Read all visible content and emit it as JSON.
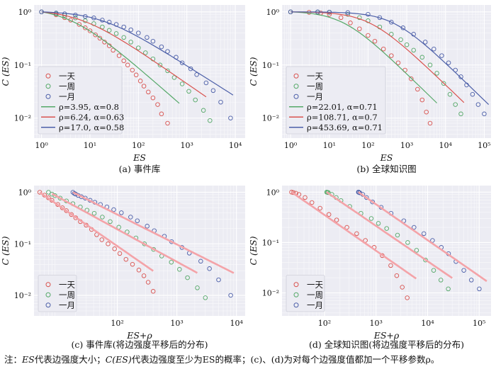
{
  "note": {
    "prefix": "注：",
    "es1": "ES",
    "t1": "代表边强度大小；",
    "ces": "C(ES)",
    "t2": "代表边强度至少为ES的概率；(c)、(d)为对每个边强度值都加一个平移参数ρ。"
  },
  "colors": {
    "day": "#d9534f",
    "week": "#55a868",
    "month": "#4c5fa8",
    "pink": "#f4a3a8",
    "plot_bg": "#ececf3",
    "grid": "#ffffff"
  },
  "chart_data": [
    {
      "type": "scatter",
      "caption": "(a) 事件库",
      "xlabel": "ES",
      "ylabel": "C (ES)",
      "x_scale": "log",
      "y_scale": "log",
      "xlim": [
        0.7,
        16000
      ],
      "ylim": [
        0.0042,
        1.35
      ],
      "x_ticks": [
        1,
        10,
        100,
        1000,
        10000
      ],
      "x_tick_labels": [
        "10⁰",
        "10¹",
        "10²",
        "10³",
        "10⁴"
      ],
      "y_ticks": [
        1,
        0.1,
        0.01
      ],
      "y_tick_labels": [
        "10⁰",
        "10⁻¹",
        "10⁻²"
      ],
      "grid": true,
      "legend_position": "lower-left",
      "series": [
        {
          "name": "一天",
          "kind": "points",
          "color_key": "day",
          "x": [
            1,
            2,
            3,
            4,
            6,
            8,
            10,
            13,
            16,
            20,
            25,
            30,
            40,
            50,
            60,
            75,
            90,
            110,
            130,
            160,
            200,
            250,
            300,
            400
          ],
          "y": [
            1,
            0.88,
            0.78,
            0.7,
            0.58,
            0.5,
            0.44,
            0.37,
            0.32,
            0.27,
            0.23,
            0.19,
            0.15,
            0.12,
            0.1,
            0.08,
            0.065,
            0.05,
            0.04,
            0.031,
            0.024,
            0.018,
            0.012,
            0.008
          ]
        },
        {
          "name": "一周",
          "kind": "points",
          "color_key": "week",
          "x": [
            1,
            2,
            3,
            5,
            8,
            12,
            18,
            25,
            35,
            50,
            70,
            100,
            140,
            200,
            280,
            400,
            550,
            800,
            1100,
            1500,
            2200,
            3000
          ],
          "y": [
            1,
            0.92,
            0.86,
            0.77,
            0.68,
            0.6,
            0.52,
            0.45,
            0.39,
            0.33,
            0.27,
            0.21,
            0.17,
            0.13,
            0.1,
            0.078,
            0.058,
            0.044,
            0.032,
            0.022,
            0.014,
            0.009
          ]
        },
        {
          "name": "一月",
          "kind": "points",
          "color_key": "month",
          "x": [
            1,
            2,
            3,
            5,
            8,
            12,
            18,
            25,
            35,
            50,
            70,
            100,
            150,
            200,
            300,
            400,
            600,
            800,
            1200,
            1600,
            2500,
            3500,
            5000,
            8000
          ],
          "y": [
            1,
            0.95,
            0.92,
            0.87,
            0.82,
            0.77,
            0.7,
            0.64,
            0.58,
            0.52,
            0.46,
            0.4,
            0.33,
            0.28,
            0.22,
            0.18,
            0.14,
            0.11,
            0.085,
            0.066,
            0.046,
            0.033,
            0.02,
            0.01
          ]
        },
        {
          "name": "ρ=3.95, α=0.8",
          "kind": "fit",
          "color_key": "week",
          "rho": 3.95,
          "alpha": 0.8,
          "x_range": [
            1,
            700
          ]
        },
        {
          "name": "ρ=6.24, α=0.63",
          "kind": "fit",
          "color_key": "day",
          "rho": 6.24,
          "alpha": 0.63,
          "x_range": [
            1,
            2500
          ]
        },
        {
          "name": "ρ=17.0, α=0.58",
          "kind": "fit",
          "color_key": "month",
          "rho": 17.0,
          "alpha": 0.58,
          "x_range": [
            1,
            9000
          ]
        }
      ]
    },
    {
      "type": "scatter",
      "caption": "(b) 全球知识图",
      "xlabel": "ES",
      "ylabel": "C (ES)",
      "x_scale": "log",
      "y_scale": "log",
      "xlim": [
        0.6,
        150000
      ],
      "ylim": [
        0.0042,
        1.35
      ],
      "x_ticks": [
        1,
        10,
        100,
        1000,
        10000,
        100000
      ],
      "x_tick_labels": [
        "10⁰",
        "10¹",
        "10²",
        "10³",
        "10⁴",
        "10⁵"
      ],
      "y_ticks": [
        1,
        0.1,
        0.01
      ],
      "y_tick_labels": [
        "10⁰",
        "10⁻¹",
        "10⁻²"
      ],
      "grid": true,
      "legend_position": "lower-left",
      "series": [
        {
          "name": "一天",
          "kind": "points",
          "color_key": "day",
          "x": [
            1,
            3,
            6,
            10,
            20,
            35,
            60,
            100,
            150,
            250,
            400,
            600,
            900,
            1300,
            1900,
            2500,
            3200,
            4000
          ],
          "y": [
            1,
            0.98,
            0.95,
            0.9,
            0.78,
            0.62,
            0.48,
            0.36,
            0.28,
            0.2,
            0.15,
            0.11,
            0.08,
            0.055,
            0.035,
            0.022,
            0.013,
            0.008
          ]
        },
        {
          "name": "一周",
          "kind": "points",
          "color_key": "week",
          "x": [
            1,
            5,
            10,
            30,
            60,
            100,
            200,
            400,
            700,
            1000,
            1500,
            2500,
            4000,
            6000,
            9000,
            13000,
            18000,
            25000
          ],
          "y": [
            1,
            0.99,
            0.98,
            0.9,
            0.78,
            0.68,
            0.52,
            0.38,
            0.3,
            0.24,
            0.19,
            0.14,
            0.1,
            0.07,
            0.045,
            0.028,
            0.018,
            0.012
          ]
        },
        {
          "name": "一月",
          "kind": "points",
          "color_key": "month",
          "x": [
            1,
            5,
            10,
            30,
            100,
            200,
            400,
            800,
            1500,
            3000,
            5000,
            8000,
            12000,
            18000,
            25000,
            35000,
            50000,
            70000,
            100000
          ],
          "y": [
            1,
            1,
            0.99,
            0.97,
            0.9,
            0.78,
            0.64,
            0.5,
            0.38,
            0.27,
            0.2,
            0.15,
            0.11,
            0.08,
            0.06,
            0.042,
            0.028,
            0.018,
            0.012
          ]
        },
        {
          "name": "ρ=22.01, α=0.71",
          "kind": "fit",
          "color_key": "week",
          "rho": 22.01,
          "alpha": 0.71,
          "x_range": [
            1,
            6000
          ]
        },
        {
          "name": "ρ=108.71, α=0.7",
          "kind": "fit",
          "color_key": "day",
          "rho": 108.71,
          "alpha": 0.7,
          "x_range": [
            1,
            30000
          ]
        },
        {
          "name": "ρ=453.69, α=0.71",
          "kind": "fit",
          "color_key": "month",
          "rho": 453.69,
          "alpha": 0.71,
          "x_range": [
            1,
            130000
          ]
        }
      ]
    },
    {
      "type": "scatter",
      "caption": "(c) 事件库(将边强度平移后的分布)",
      "xlabel": "ES+ρ",
      "ylabel": "C (ES)",
      "x_scale": "log",
      "y_scale": "log",
      "xlim": [
        4,
        14000
      ],
      "ylim": [
        0.004,
        1.35
      ],
      "x_ticks": [
        100,
        1000,
        10000
      ],
      "x_tick_labels": [
        "10²",
        "10³",
        "10⁴"
      ],
      "y_ticks": [
        1,
        0.1,
        0.01
      ],
      "y_tick_labels": [
        "10⁰",
        "10⁻¹",
        "10⁻²"
      ],
      "grid": true,
      "legend_position": "lower-left",
      "series": [
        {
          "name": "一天",
          "kind": "points",
          "color_key": "day",
          "x": [
            5,
            6,
            7,
            8,
            10,
            12,
            14,
            17,
            20,
            24,
            30,
            37,
            45,
            55,
            70,
            90,
            110,
            140,
            180,
            230,
            280,
            330,
            400
          ],
          "y": [
            1,
            0.88,
            0.78,
            0.7,
            0.58,
            0.5,
            0.44,
            0.37,
            0.32,
            0.27,
            0.23,
            0.19,
            0.15,
            0.12,
            0.1,
            0.08,
            0.065,
            0.05,
            0.04,
            0.031,
            0.024,
            0.018,
            0.012
          ]
        },
        {
          "name": "一周",
          "kind": "points",
          "color_key": "week",
          "x": [
            7,
            8,
            9,
            11,
            14,
            18,
            24,
            31,
            41,
            56,
            76,
            106,
            146,
            206,
            286,
            406,
            556,
            806,
            1106,
            1506,
            2206,
            3006
          ],
          "y": [
            1,
            0.92,
            0.86,
            0.77,
            0.68,
            0.6,
            0.52,
            0.45,
            0.39,
            0.33,
            0.27,
            0.21,
            0.17,
            0.13,
            0.1,
            0.078,
            0.058,
            0.044,
            0.032,
            0.022,
            0.014,
            0.009
          ]
        },
        {
          "name": "一月",
          "kind": "points",
          "color_key": "month",
          "x": [
            18,
            19,
            20,
            22,
            25,
            29,
            35,
            42,
            52,
            67,
            87,
            117,
            167,
            217,
            317,
            417,
            617,
            817,
            1217,
            1617,
            2517,
            3517,
            5017,
            8017
          ],
          "y": [
            1,
            0.95,
            0.92,
            0.87,
            0.82,
            0.77,
            0.7,
            0.64,
            0.58,
            0.52,
            0.46,
            0.4,
            0.33,
            0.28,
            0.22,
            0.18,
            0.14,
            0.11,
            0.085,
            0.066,
            0.046,
            0.033,
            0.02,
            0.01
          ]
        },
        {
          "name": "",
          "kind": "fit",
          "color_key": "pink",
          "rho": 0,
          "alpha": 0.8,
          "x0": 4.95,
          "x_range": [
            5,
            400
          ]
        },
        {
          "name": "",
          "kind": "fit",
          "color_key": "pink",
          "rho": 0,
          "alpha": 0.63,
          "x0": 7.24,
          "x_range": [
            8,
            2200
          ]
        },
        {
          "name": "",
          "kind": "fit",
          "color_key": "pink",
          "rho": 0,
          "alpha": 0.58,
          "x0": 18,
          "x_range": [
            18,
            9000
          ]
        }
      ]
    },
    {
      "type": "scatter",
      "caption": "(d) 全球知识图(将边强度平移后的分布)",
      "xlabel": "ES+ρ",
      "ylabel": "C (ES)",
      "x_scale": "log",
      "y_scale": "log",
      "xlim": [
        15,
        170000
      ],
      "ylim": [
        0.0035,
        1.35
      ],
      "x_ticks": [
        100,
        1000,
        10000,
        100000
      ],
      "x_tick_labels": [
        "10²",
        "10³",
        "10⁴",
        "10⁵"
      ],
      "y_ticks": [
        1,
        0.1,
        0.01
      ],
      "y_tick_labels": [
        "10⁰",
        "10⁻¹",
        "10⁻²"
      ],
      "grid": true,
      "legend_position": "lower-left",
      "series": [
        {
          "name": "一天",
          "kind": "points",
          "color_key": "day",
          "x": [
            23,
            25,
            28,
            32,
            42,
            57,
            82,
            122,
            172,
            272,
            422,
            622,
            922,
            1322,
            1922,
            2522,
            3222,
            4022
          ],
          "y": [
            1,
            0.98,
            0.95,
            0.9,
            0.78,
            0.62,
            0.48,
            0.36,
            0.28,
            0.2,
            0.15,
            0.11,
            0.08,
            0.055,
            0.035,
            0.022,
            0.013,
            0.008
          ]
        },
        {
          "name": "一周",
          "kind": "points",
          "color_key": "week",
          "x": [
            110,
            114,
            119,
            139,
            169,
            209,
            309,
            509,
            809,
            1109,
            1609,
            2609,
            4109,
            6109,
            9109,
            13109,
            18109,
            25109
          ],
          "y": [
            1,
            0.99,
            0.98,
            0.9,
            0.78,
            0.68,
            0.52,
            0.38,
            0.3,
            0.24,
            0.19,
            0.14,
            0.1,
            0.07,
            0.045,
            0.028,
            0.018,
            0.012
          ]
        },
        {
          "name": "一月",
          "kind": "points",
          "color_key": "month",
          "x": [
            455,
            459,
            464,
            484,
            554,
            654,
            854,
            1254,
            1954,
            3454,
            5454,
            8454,
            12454,
            18454,
            25454,
            35454,
            50454,
            70454,
            100454
          ],
          "y": [
            1,
            1,
            0.99,
            0.97,
            0.9,
            0.78,
            0.64,
            0.5,
            0.38,
            0.27,
            0.2,
            0.15,
            0.11,
            0.08,
            0.06,
            0.042,
            0.028,
            0.018,
            0.012
          ]
        },
        {
          "name": "",
          "kind": "fit",
          "color_key": "pink",
          "rho": 0,
          "alpha": 0.71,
          "x0": 23,
          "x_range": [
            23,
            6000
          ]
        },
        {
          "name": "",
          "kind": "fit",
          "color_key": "pink",
          "rho": 0,
          "alpha": 0.7,
          "x0": 110,
          "x_range": [
            110,
            30000
          ]
        },
        {
          "name": "",
          "kind": "fit",
          "color_key": "pink",
          "rho": 0,
          "alpha": 0.71,
          "x0": 455,
          "x_range": [
            455,
            140000
          ]
        }
      ]
    }
  ]
}
